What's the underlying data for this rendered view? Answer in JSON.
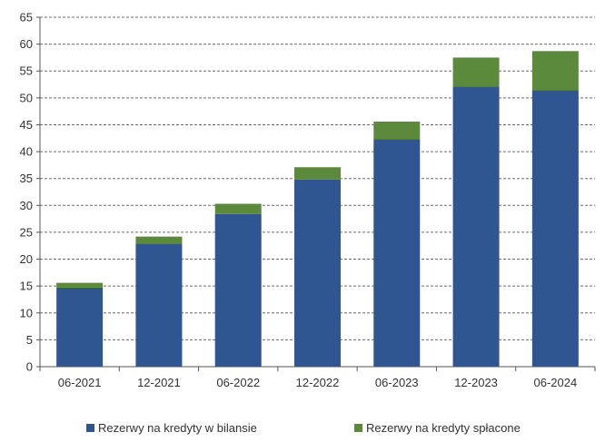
{
  "chart_data": {
    "type": "bar",
    "stacked": true,
    "categories": [
      "06-2021",
      "12-2021",
      "06-2022",
      "12-2022",
      "06-2023",
      "12-2023",
      "06-2024"
    ],
    "series": [
      {
        "name": "Rezerwy na kredyty w bilansie",
        "color": "#2f5690",
        "values": [
          14.7,
          22.9,
          28.4,
          34.8,
          42.3,
          52.1,
          51.4
        ]
      },
      {
        "name": "Rezerwy na kredyty spłacone",
        "color": "#5b8a3c",
        "values": [
          0.9,
          1.3,
          1.9,
          2.3,
          3.3,
          5.4,
          7.3
        ]
      }
    ],
    "ylim": [
      0,
      65
    ],
    "yticks": [
      0,
      5,
      10,
      15,
      20,
      25,
      30,
      35,
      40,
      45,
      50,
      55,
      60,
      65
    ],
    "grid": true,
    "legend_position": "bottom"
  }
}
